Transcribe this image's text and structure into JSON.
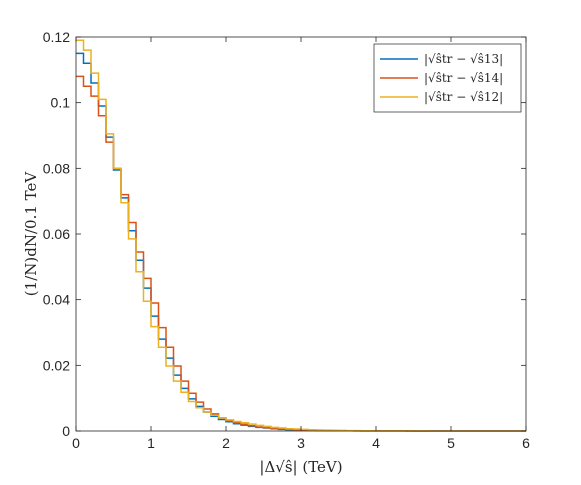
{
  "chart_data": {
    "type": "line",
    "step": true,
    "xlabel": "|Δ√ŝ| (TeV)",
    "ylabel": "(1/N)dN/0.1 TeV",
    "xlim": [
      0,
      6
    ],
    "ylim": [
      0,
      0.12
    ],
    "xticks": [
      "0",
      "1",
      "2",
      "3",
      "4",
      "5",
      "6"
    ],
    "yticks": [
      "0",
      "0.02",
      "0.04",
      "0.06",
      "0.08",
      "0.1",
      "0.12"
    ],
    "grid": false,
    "legend_position": "top-right",
    "bin_width": 0.1,
    "series": [
      {
        "name": "|√ŝtr − √ŝ13|",
        "color": "#0072BD",
        "values": [
          0.115,
          0.112,
          0.106,
          0.099,
          0.0895,
          0.0795,
          0.071,
          0.061,
          0.052,
          0.0435,
          0.035,
          0.028,
          0.0222,
          0.017,
          0.013,
          0.0098,
          0.0075,
          0.0058,
          0.0045,
          0.0035,
          0.0028,
          0.0022,
          0.0018,
          0.0014,
          0.0011,
          0.0009,
          0.0007,
          0.0005,
          0.0004,
          0.0003,
          0.00025,
          0.0002,
          0.00016,
          0.00013,
          0.0001,
          8e-05,
          6e-05,
          5e-05,
          4e-05,
          3e-05,
          3e-05,
          2e-05,
          2e-05,
          2e-05,
          1e-05,
          1e-05,
          1e-05,
          1e-05,
          1e-05,
          1e-05,
          1e-05,
          1e-05,
          1e-05,
          1e-05,
          1e-05,
          1e-05,
          1e-05,
          1e-05,
          1e-05,
          1e-05
        ]
      },
      {
        "name": "|√ŝtr − √ŝ14|",
        "color": "#D95319",
        "values": [
          0.108,
          0.105,
          0.102,
          0.096,
          0.088,
          0.08,
          0.072,
          0.0635,
          0.0545,
          0.0465,
          0.039,
          0.0315,
          0.0255,
          0.0198,
          0.0152,
          0.0115,
          0.0088,
          0.0067,
          0.0052,
          0.004,
          0.0031,
          0.0025,
          0.002,
          0.0016,
          0.0012,
          0.001,
          0.0008,
          0.0006,
          0.0005,
          0.0004,
          0.0003,
          0.00025,
          0.0002,
          0.00015,
          0.00012,
          0.0001,
          8e-05,
          6e-05,
          5e-05,
          4e-05,
          3e-05,
          3e-05,
          2e-05,
          2e-05,
          2e-05,
          1e-05,
          1e-05,
          1e-05,
          1e-05,
          1e-05,
          1e-05,
          1e-05,
          1e-05,
          1e-05,
          1e-05,
          1e-05,
          1e-05,
          1e-05,
          1e-05,
          1e-05
        ]
      },
      {
        "name": "|√ŝtr − √ŝ12|",
        "color": "#EDB120",
        "values": [
          0.119,
          0.116,
          0.109,
          0.101,
          0.0905,
          0.08,
          0.0695,
          0.0585,
          0.0485,
          0.0395,
          0.0318,
          0.0255,
          0.0198,
          0.0152,
          0.0118,
          0.009,
          0.0071,
          0.0058,
          0.0048,
          0.004,
          0.0034,
          0.0029,
          0.0025,
          0.0021,
          0.0017,
          0.0014,
          0.0011,
          0.0009,
          0.0007,
          0.0006,
          0.0005,
          0.0004,
          0.0003,
          0.00025,
          0.0002,
          0.00015,
          0.00012,
          0.0001,
          8e-05,
          6e-05,
          5e-05,
          4e-05,
          3e-05,
          3e-05,
          2e-05,
          2e-05,
          2e-05,
          1e-05,
          1e-05,
          1e-05,
          1e-05,
          1e-05,
          1e-05,
          1e-05,
          1e-05,
          1e-05,
          1e-05,
          1e-05,
          1e-05,
          1e-05
        ]
      }
    ]
  }
}
